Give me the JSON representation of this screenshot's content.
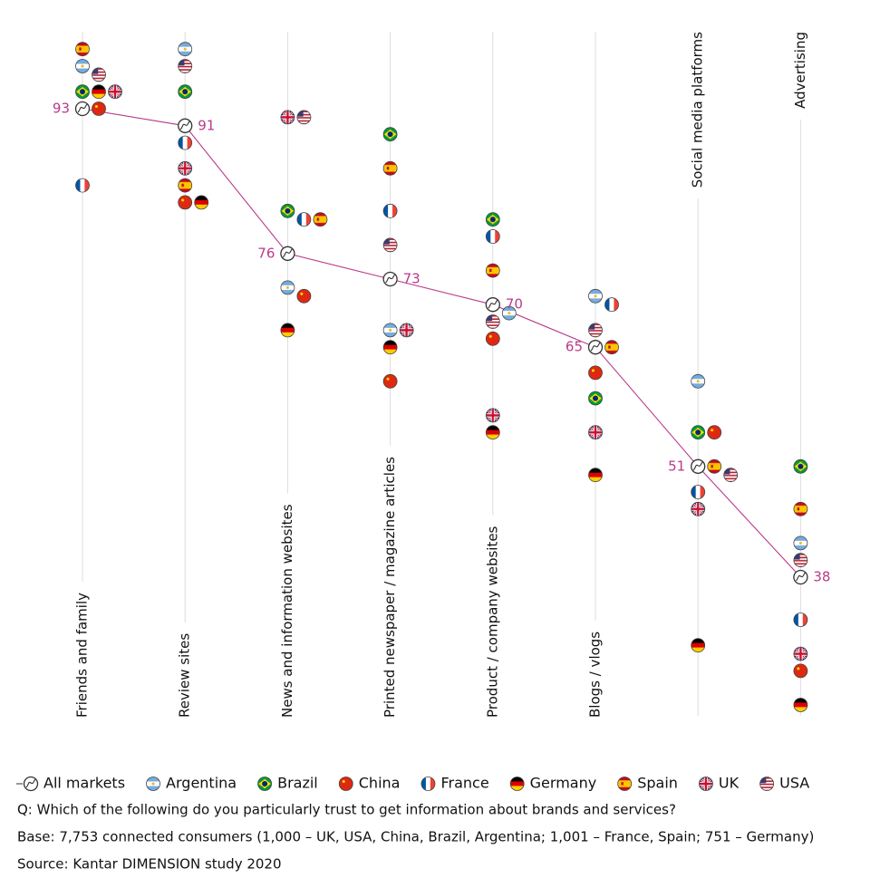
{
  "chart_data": {
    "type": "dot",
    "categories": [
      "Friends and family",
      "Review sites",
      "News and information websites",
      "Printed newspaper / magazine articles",
      "Product / company websites",
      "Blogs / vlogs",
      "Social media platforms",
      "Advertising"
    ],
    "series": [
      {
        "name": "All markets",
        "color": "#b83a8a",
        "values": [
          93,
          91,
          76,
          73,
          70,
          65,
          51,
          38
        ]
      },
      {
        "name": "Argentina",
        "color": "#74acdf",
        "values": [
          98,
          100,
          72,
          67,
          69,
          71,
          61,
          42
        ]
      },
      {
        "name": "Brazil",
        "color": "#009b3a",
        "values": [
          95,
          95,
          81,
          90,
          80,
          59,
          55,
          51
        ]
      },
      {
        "name": "China",
        "color": "#de2910",
        "values": [
          93,
          82,
          71,
          61,
          66,
          62,
          55,
          27
        ]
      },
      {
        "name": "France",
        "color": "#0055a4",
        "values": [
          84,
          89,
          80,
          81,
          78,
          70,
          48,
          33
        ]
      },
      {
        "name": "Germany",
        "color": "#222222",
        "values": [
          95,
          82,
          67,
          65,
          55,
          50,
          30,
          23
        ]
      },
      {
        "name": "Spain",
        "color": "#c60b1e",
        "values": [
          100,
          84,
          80,
          86,
          74,
          65,
          51,
          46
        ]
      },
      {
        "name": "UK",
        "color": "#012169",
        "values": [
          95,
          86,
          92,
          67,
          57,
          55,
          46,
          29
        ]
      },
      {
        "name": "USA",
        "color": "#b22234",
        "values": [
          97,
          98,
          92,
          77,
          68,
          67,
          50,
          40
        ]
      }
    ],
    "question": "Q: Which of the following do you particularly trust to get information about brands and services?",
    "base": "Base: 7,753 connected consumers (1,000 – UK, USA, China, Brazil, Argentina; 1,001 – France, Spain; 751 – Germany)",
    "source": "Source: Kantar DIMENSION study 2020"
  }
}
